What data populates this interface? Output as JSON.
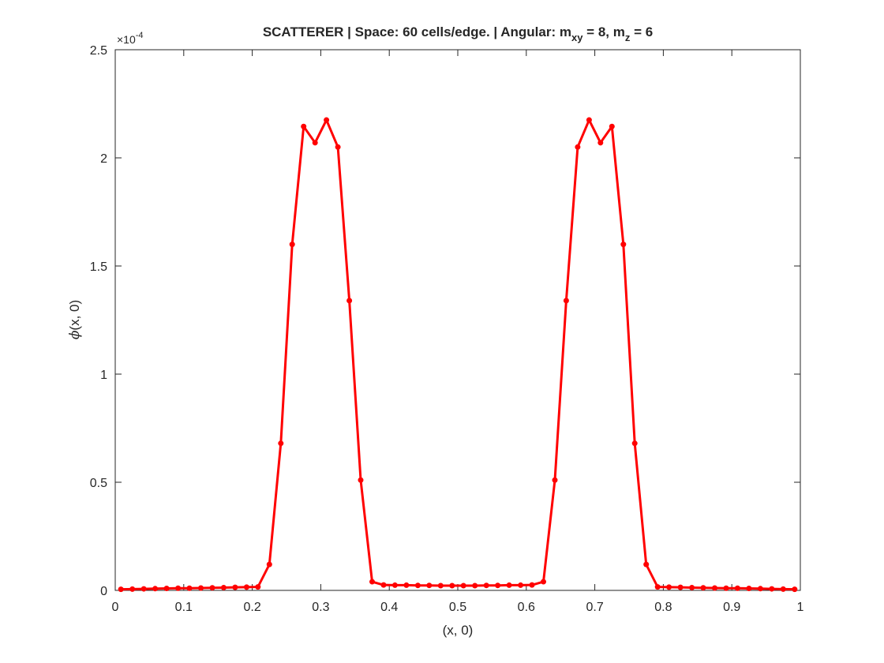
{
  "chart_data": {
    "type": "line",
    "title": {
      "prefix": "SCATTERER | Space: 60 cells/edge. | Angular: m",
      "sub1": "xy",
      "mid": " = 8, m",
      "sub2": "z",
      "suffix": " = 6"
    },
    "xlabel": "(x, 0)",
    "ylabel": {
      "symbol": "ϕ",
      "rest": "(x, 0)"
    },
    "y_exponent": {
      "base": "×10",
      "power": "-4"
    },
    "xlim": [
      0,
      1
    ],
    "ylim": [
      0,
      2.5
    ],
    "x_ticks": [
      0,
      0.1,
      0.2,
      0.3,
      0.4,
      0.5,
      0.6,
      0.7,
      0.8,
      0.9,
      1
    ],
    "x_tick_labels": [
      "0",
      "0.1",
      "0.2",
      "0.3",
      "0.4",
      "0.5",
      "0.6",
      "0.7",
      "0.8",
      "0.9",
      "1"
    ],
    "y_ticks": [
      0,
      0.5,
      1,
      1.5,
      2,
      2.5
    ],
    "y_tick_labels": [
      "0",
      "0.5",
      "1",
      "1.5",
      "2",
      "2.5"
    ],
    "grid": false,
    "legend": "none",
    "series": [
      {
        "color": "#ff0000",
        "marker": "filled-circle",
        "x": [
          0.0083,
          0.025,
          0.0417,
          0.0583,
          0.075,
          0.0917,
          0.1083,
          0.125,
          0.1417,
          0.1583,
          0.175,
          0.1917,
          0.2083,
          0.225,
          0.2417,
          0.2583,
          0.275,
          0.2917,
          0.3083,
          0.325,
          0.3417,
          0.3583,
          0.375,
          0.3917,
          0.4083,
          0.425,
          0.4417,
          0.4583,
          0.475,
          0.4917,
          0.5083,
          0.525,
          0.5417,
          0.5583,
          0.575,
          0.5917,
          0.6083,
          0.625,
          0.6417,
          0.6583,
          0.675,
          0.6917,
          0.7083,
          0.725,
          0.7417,
          0.7583,
          0.775,
          0.7917,
          0.8083,
          0.825,
          0.8417,
          0.8583,
          0.875,
          0.8917,
          0.9083,
          0.925,
          0.9417,
          0.9583,
          0.975,
          0.9917
        ],
        "y": [
          0.005,
          0.006,
          0.007,
          0.008,
          0.009,
          0.01,
          0.01,
          0.011,
          0.012,
          0.013,
          0.014,
          0.015,
          0.016,
          0.12,
          0.68,
          1.6,
          2.145,
          2.07,
          2.175,
          2.05,
          1.34,
          0.51,
          0.04,
          0.025,
          0.024,
          0.024,
          0.023,
          0.023,
          0.022,
          0.022,
          0.022,
          0.022,
          0.023,
          0.023,
          0.024,
          0.024,
          0.025,
          0.04,
          0.51,
          1.34,
          2.05,
          2.175,
          2.07,
          2.145,
          1.6,
          0.68,
          0.12,
          0.016,
          0.015,
          0.014,
          0.013,
          0.012,
          0.011,
          0.01,
          0.01,
          0.009,
          0.008,
          0.007,
          0.006,
          0.005
        ]
      }
    ]
  }
}
